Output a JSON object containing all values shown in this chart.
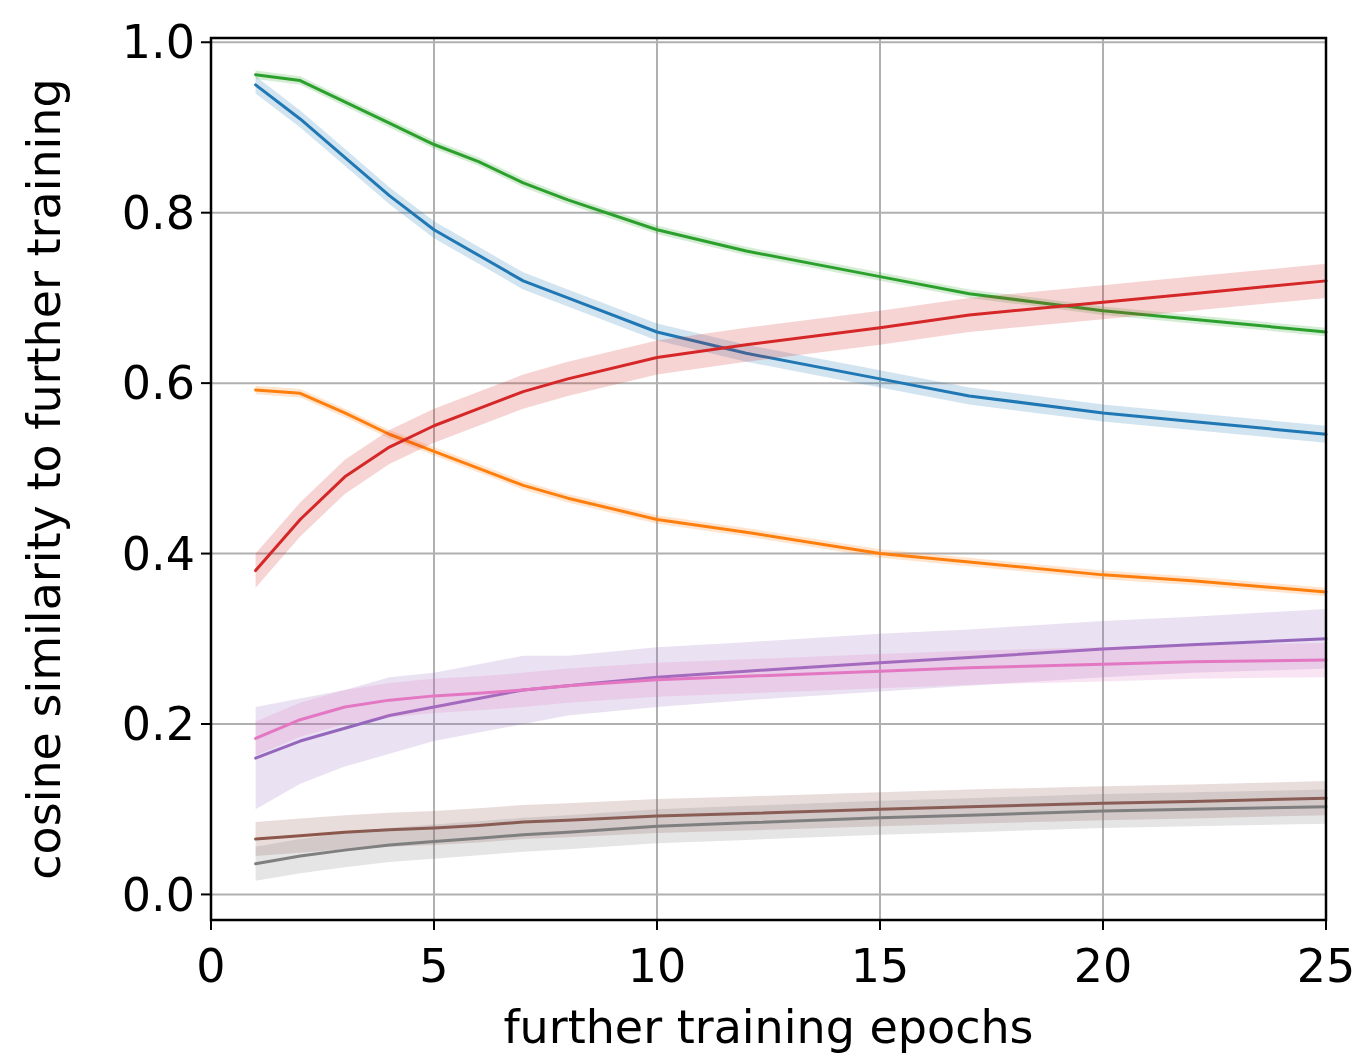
{
  "chart_data": {
    "type": "line",
    "xlabel": "further training epochs",
    "ylabel": "cosine similarity to further training",
    "x": [
      1,
      2,
      3,
      4,
      5,
      6,
      7,
      8,
      10,
      12,
      15,
      17,
      20,
      22,
      25
    ],
    "xlim": [
      0,
      25
    ],
    "xticks": [
      0,
      5,
      10,
      15,
      20,
      25
    ],
    "ylim": [
      -0.03,
      1.005
    ],
    "yticks": [
      {
        "value": 0,
        "label": "0.0"
      },
      0.2,
      0.4,
      0.6,
      0.8,
      {
        "value": 1,
        "label": "1.0"
      }
    ],
    "grid": true,
    "marker": "none",
    "line_style": "solid",
    "series": [
      {
        "color": "#1f77b4",
        "values": [
          0.95,
          0.91,
          0.865,
          0.82,
          0.78,
          0.75,
          0.72,
          0.7,
          0.66,
          0.635,
          0.605,
          0.585,
          0.565,
          0.555,
          0.54
        ],
        "lower": [
          0.94,
          0.9,
          0.855,
          0.81,
          0.77,
          0.74,
          0.71,
          0.69,
          0.65,
          0.625,
          0.595,
          0.575,
          0.555,
          0.545,
          0.53
        ],
        "upper": [
          0.96,
          0.92,
          0.875,
          0.83,
          0.79,
          0.76,
          0.73,
          0.71,
          0.67,
          0.645,
          0.615,
          0.595,
          0.575,
          0.565,
          0.55
        ]
      },
      {
        "color": "#ff7f0e",
        "values": [
          0.592,
          0.588,
          0.565,
          0.54,
          0.52,
          0.5,
          0.48,
          0.465,
          0.44,
          0.425,
          0.4,
          0.39,
          0.375,
          0.368,
          0.355
        ],
        "lower": [
          0.587,
          0.583,
          0.56,
          0.535,
          0.515,
          0.495,
          0.475,
          0.46,
          0.435,
          0.42,
          0.395,
          0.385,
          0.37,
          0.363,
          0.35
        ],
        "upper": [
          0.597,
          0.593,
          0.57,
          0.545,
          0.525,
          0.505,
          0.485,
          0.47,
          0.445,
          0.43,
          0.405,
          0.395,
          0.38,
          0.373,
          0.36
        ]
      },
      {
        "color": "#2ca02c",
        "values": [
          0.962,
          0.955,
          0.93,
          0.905,
          0.88,
          0.86,
          0.835,
          0.815,
          0.78,
          0.755,
          0.725,
          0.705,
          0.685,
          0.675,
          0.66
        ],
        "lower": [
          0.957,
          0.95,
          0.925,
          0.9,
          0.875,
          0.855,
          0.83,
          0.81,
          0.775,
          0.75,
          0.72,
          0.7,
          0.68,
          0.67,
          0.655
        ],
        "upper": [
          0.967,
          0.96,
          0.935,
          0.91,
          0.885,
          0.865,
          0.84,
          0.82,
          0.785,
          0.76,
          0.73,
          0.71,
          0.69,
          0.68,
          0.665
        ]
      },
      {
        "color": "#d62728",
        "values": [
          0.38,
          0.44,
          0.49,
          0.525,
          0.55,
          0.57,
          0.59,
          0.605,
          0.63,
          0.645,
          0.665,
          0.68,
          0.695,
          0.705,
          0.72
        ],
        "lower": [
          0.36,
          0.42,
          0.47,
          0.505,
          0.53,
          0.55,
          0.57,
          0.585,
          0.61,
          0.625,
          0.645,
          0.66,
          0.675,
          0.685,
          0.7
        ],
        "upper": [
          0.4,
          0.46,
          0.51,
          0.545,
          0.57,
          0.59,
          0.61,
          0.625,
          0.65,
          0.665,
          0.685,
          0.7,
          0.715,
          0.725,
          0.74
        ]
      },
      {
        "color": "#9467bd",
        "values": [
          0.16,
          0.18,
          0.195,
          0.21,
          0.22,
          0.23,
          0.24,
          0.245,
          0.255,
          0.262,
          0.272,
          0.278,
          0.288,
          0.293,
          0.3
        ],
        "lower": [
          0.1,
          0.13,
          0.15,
          0.165,
          0.18,
          0.19,
          0.2,
          0.21,
          0.22,
          0.228,
          0.238,
          0.245,
          0.255,
          0.26,
          0.265
        ],
        "upper": [
          0.22,
          0.23,
          0.24,
          0.255,
          0.26,
          0.27,
          0.28,
          0.28,
          0.29,
          0.296,
          0.306,
          0.311,
          0.321,
          0.326,
          0.335
        ]
      },
      {
        "color": "#8c564b",
        "values": [
          0.065,
          0.069,
          0.073,
          0.076,
          0.078,
          0.081,
          0.085,
          0.087,
          0.092,
          0.095,
          0.1,
          0.103,
          0.107,
          0.109,
          0.113
        ],
        "lower": [
          0.045,
          0.049,
          0.053,
          0.056,
          0.058,
          0.061,
          0.065,
          0.067,
          0.072,
          0.075,
          0.08,
          0.083,
          0.087,
          0.089,
          0.093
        ],
        "upper": [
          0.085,
          0.089,
          0.093,
          0.096,
          0.098,
          0.101,
          0.105,
          0.107,
          0.112,
          0.115,
          0.12,
          0.123,
          0.127,
          0.129,
          0.133
        ]
      },
      {
        "color": "#e377c2",
        "values": [
          0.183,
          0.205,
          0.22,
          0.228,
          0.233,
          0.236,
          0.24,
          0.245,
          0.252,
          0.256,
          0.262,
          0.266,
          0.27,
          0.273,
          0.275
        ],
        "lower": [
          0.163,
          0.185,
          0.2,
          0.208,
          0.213,
          0.216,
          0.22,
          0.225,
          0.232,
          0.236,
          0.242,
          0.246,
          0.25,
          0.253,
          0.255
        ],
        "upper": [
          0.203,
          0.225,
          0.24,
          0.248,
          0.253,
          0.256,
          0.26,
          0.265,
          0.272,
          0.276,
          0.282,
          0.286,
          0.29,
          0.293,
          0.295
        ]
      },
      {
        "color": "#7f7f7f",
        "values": [
          0.036,
          0.045,
          0.052,
          0.058,
          0.062,
          0.066,
          0.07,
          0.073,
          0.08,
          0.084,
          0.09,
          0.093,
          0.098,
          0.1,
          0.103
        ],
        "lower": [
          0.016,
          0.025,
          0.032,
          0.038,
          0.042,
          0.046,
          0.05,
          0.053,
          0.06,
          0.064,
          0.07,
          0.073,
          0.078,
          0.08,
          0.083
        ],
        "upper": [
          0.056,
          0.065,
          0.072,
          0.078,
          0.082,
          0.086,
          0.09,
          0.093,
          0.1,
          0.104,
          0.11,
          0.113,
          0.118,
          0.12,
          0.123
        ]
      }
    ]
  }
}
